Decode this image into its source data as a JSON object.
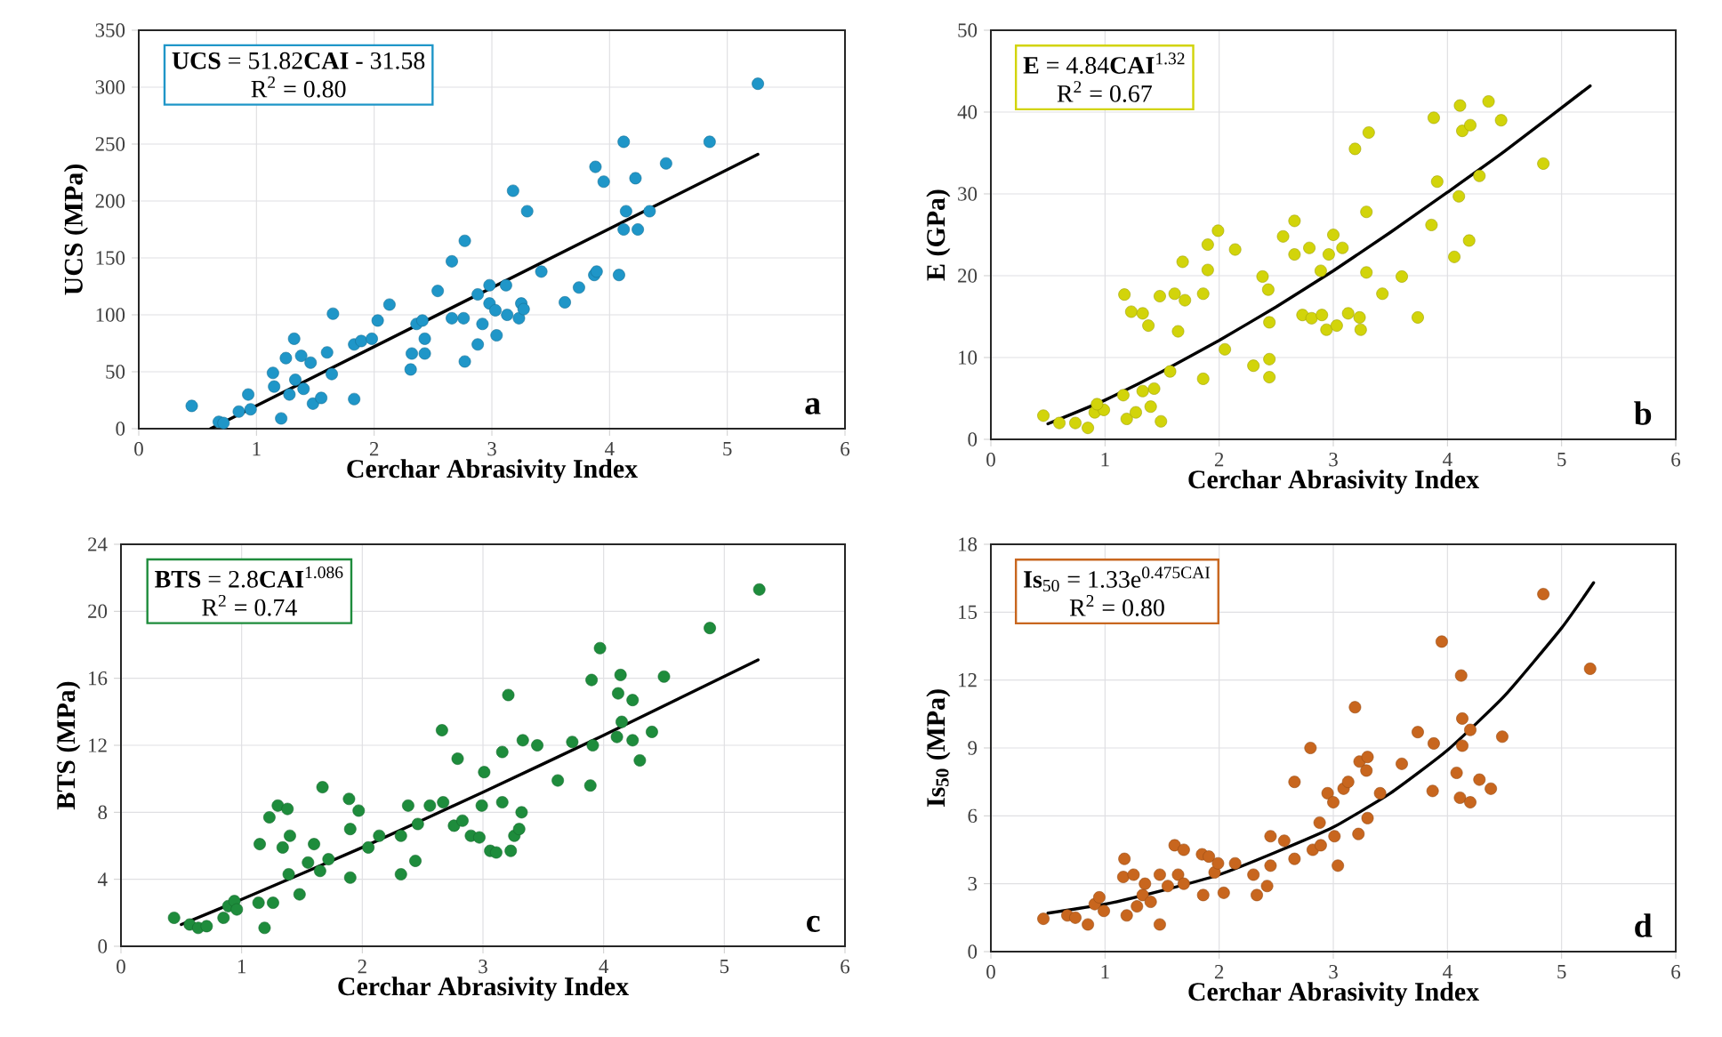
{
  "chart_data": [
    {
      "type": "scatter",
      "xlabel": "Cerchar Abrasivity Index",
      "ylabel": "UCS (MPa)",
      "xlim": [
        0,
        6
      ],
      "xticks": [
        0,
        1,
        2,
        3,
        4,
        5,
        6
      ],
      "ylim": [
        0,
        350
      ],
      "yticks": [
        0,
        50,
        100,
        150,
        200,
        250,
        300,
        350
      ],
      "grid": true,
      "marker": "circle",
      "annotations": [
        "**UCS** = 51.82**CAI** - 31.58",
        "R$^{2}$ = 0.80",
        "**a**"
      ],
      "series": [
        {
          "color": "#1f96c8",
          "x": [
            0.45,
            0.68,
            0.72,
            0.93,
            0.95,
            0.85,
            1.14,
            1.15,
            1.21,
            1.25,
            1.32,
            1.28,
            1.33,
            1.38,
            1.4,
            1.46,
            1.48,
            1.55,
            1.6,
            1.64,
            1.65,
            1.83,
            1.83,
            1.89,
            1.98,
            2.03,
            2.13,
            2.31,
            2.32,
            2.36,
            2.41,
            2.43,
            2.43,
            2.54,
            2.66,
            2.66,
            2.76,
            2.77,
            2.77,
            2.88,
            2.92,
            2.88,
            2.98,
            2.98,
            3.03,
            3.04,
            3.12,
            3.13,
            3.18,
            3.23,
            3.25,
            3.3,
            3.27,
            3.42,
            3.62,
            3.74,
            3.87,
            3.89,
            3.88,
            3.95,
            4.08,
            4.12,
            4.12,
            4.14,
            4.22,
            4.24,
            4.34,
            4.48,
            4.85,
            5.26
          ],
          "values": [
            20,
            6,
            5,
            30,
            17,
            15,
            49,
            37,
            9,
            62,
            79,
            30,
            43,
            64,
            35,
            58,
            22,
            27,
            67,
            48,
            101,
            26,
            74,
            77,
            79,
            95,
            109,
            52,
            66,
            92,
            95,
            79,
            66,
            121,
            147,
            97,
            97,
            165,
            59,
            74,
            92,
            118,
            126,
            110,
            104,
            82,
            126,
            100,
            209,
            97,
            110,
            191,
            105,
            138,
            111,
            124,
            135,
            138,
            230,
            217,
            135,
            252,
            175,
            191,
            220,
            175,
            191,
            233,
            252,
            303
          ]
        },
        {
          "type": "line",
          "color": "#000000",
          "marker": "none",
          "x": [
            0.61,
            5.26
          ],
          "values": [
            0,
            241
          ]
        }
      ]
    },
    {
      "type": "scatter",
      "xlabel": "Cerchar Abrasivity Index",
      "ylabel": "E (GPa)",
      "xlim": [
        0,
        6
      ],
      "xticks": [
        0,
        1,
        2,
        3,
        4,
        5,
        6
      ],
      "ylim": [
        0,
        50
      ],
      "yticks": [
        0,
        10,
        20,
        30,
        40,
        50
      ],
      "grid": true,
      "marker": "circle",
      "annotations": [
        "**E** = 4.84**CAI**$^{1.32}$",
        "R$^{2}$ = 0.67",
        "**b**"
      ],
      "series": [
        {
          "color": "#d2d40a",
          "x": [
            0.46,
            0.6,
            0.74,
            0.85,
            0.91,
            0.99,
            0.93,
            1.16,
            1.17,
            1.23,
            1.19,
            1.27,
            1.33,
            1.38,
            1.4,
            1.43,
            1.33,
            1.48,
            1.49,
            1.57,
            1.61,
            1.64,
            1.68,
            1.7,
            1.86,
            1.86,
            1.9,
            1.9,
            1.99,
            2.05,
            2.14,
            2.3,
            2.38,
            2.43,
            2.44,
            2.44,
            2.44,
            2.56,
            2.66,
            2.66,
            2.73,
            2.79,
            2.81,
            2.9,
            2.89,
            2.94,
            3.0,
            2.96,
            3.03,
            3.08,
            3.13,
            3.19,
            3.23,
            3.24,
            3.29,
            3.29,
            3.31,
            3.43,
            3.6,
            3.74,
            3.86,
            3.88,
            3.91,
            4.06,
            4.1,
            4.11,
            4.13,
            4.19,
            4.2,
            4.28,
            4.36,
            4.47,
            4.84
          ],
          "values": [
            2.9,
            2,
            2,
            1.4,
            3.3,
            3.6,
            4.3,
            5.4,
            17.7,
            15.6,
            2.5,
            3.3,
            15.4,
            13.9,
            4,
            6.2,
            5.9,
            17.5,
            2.2,
            8.3,
            17.8,
            13.2,
            21.7,
            17,
            17.8,
            7.4,
            20.7,
            23.8,
            25.5,
            11,
            23.2,
            9,
            19.9,
            18.3,
            9.8,
            7.6,
            14.3,
            24.8,
            26.7,
            22.6,
            15.2,
            23.4,
            14.8,
            15.2,
            20.6,
            13.4,
            25,
            22.6,
            13.9,
            23.4,
            15.4,
            35.5,
            14.9,
            13.4,
            20.4,
            27.8,
            37.5,
            17.8,
            19.9,
            14.9,
            26.2,
            39.3,
            31.5,
            22.3,
            29.7,
            40.8,
            37.7,
            24.3,
            38.4,
            32.2,
            41.3,
            39,
            33.7
          ]
        },
        {
          "type": "line",
          "color": "#000000",
          "marker": "none",
          "x": [
            0.5,
            1,
            1.5,
            2,
            2.5,
            3,
            3.5,
            4,
            4.5,
            5.25
          ],
          "values": [
            1.9,
            4.8,
            8.3,
            12.1,
            16.2,
            20.6,
            25.3,
            30.2,
            35.2,
            43.2
          ]
        }
      ]
    },
    {
      "type": "scatter",
      "xlabel": "Cerchar Abrasivity Index",
      "ylabel": "BTS (MPa)",
      "xlim": [
        0,
        6
      ],
      "xticks": [
        0,
        1,
        2,
        3,
        4,
        5,
        6
      ],
      "ylim": [
        0,
        24
      ],
      "yticks": [
        0,
        4,
        8,
        12,
        16,
        20,
        24
      ],
      "grid": true,
      "marker": "circle",
      "annotations": [
        "**BTS** = 2.8**CAI**$^{1.086}$",
        "R$^{2}$ = 0.74",
        "**c**"
      ],
      "series": [
        {
          "color": "#1e8c3c",
          "x": [
            0.44,
            0.57,
            0.64,
            0.71,
            0.85,
            0.89,
            0.94,
            0.96,
            1.15,
            1.14,
            1.19,
            1.23,
            1.26,
            1.3,
            1.34,
            1.38,
            1.4,
            1.39,
            1.48,
            1.55,
            1.6,
            1.67,
            1.65,
            1.72,
            1.89,
            1.9,
            1.9,
            1.97,
            2.05,
            2.14,
            2.32,
            2.32,
            2.38,
            2.44,
            2.46,
            2.56,
            2.66,
            2.67,
            2.76,
            2.79,
            2.83,
            2.9,
            2.97,
            2.99,
            3.01,
            3.06,
            3.11,
            3.16,
            3.16,
            3.21,
            3.23,
            3.26,
            3.3,
            3.32,
            3.33,
            3.45,
            3.62,
            3.74,
            3.89,
            3.9,
            3.91,
            3.97,
            4.11,
            4.12,
            4.14,
            4.15,
            4.24,
            4.24,
            4.3,
            4.4,
            4.5,
            4.88,
            5.29
          ],
          "values": [
            1.7,
            1.3,
            1.1,
            1.2,
            1.7,
            2.4,
            2.7,
            2.2,
            6.1,
            2.6,
            1.1,
            7.7,
            2.6,
            8.4,
            5.9,
            8.2,
            6.6,
            4.3,
            3.1,
            5,
            6.1,
            9.5,
            4.5,
            5.2,
            8.8,
            4.1,
            7,
            8.1,
            5.9,
            6.6,
            4.3,
            6.6,
            8.4,
            5.1,
            7.3,
            8.4,
            12.9,
            8.6,
            7.2,
            11.2,
            7.5,
            6.6,
            6.5,
            8.4,
            10.4,
            5.7,
            5.6,
            8.6,
            11.6,
            15,
            5.7,
            6.6,
            7,
            8,
            12.3,
            12,
            9.9,
            12.2,
            9.6,
            15.9,
            12,
            17.8,
            12.5,
            15.1,
            16.2,
            13.4,
            14.7,
            12.3,
            11.1,
            12.8,
            16.1,
            19,
            21.3
          ]
        },
        {
          "type": "line",
          "color": "#000000",
          "marker": "none",
          "x": [
            0.5,
            1,
            2,
            3,
            4,
            5.28
          ],
          "values": [
            1.3,
            2.8,
            5.9,
            9.2,
            12.6,
            17.1
          ]
        }
      ]
    },
    {
      "type": "scatter",
      "xlabel": "Cerchar Abrasivity Index",
      "ylabel": "**Is**$_{50}$ (MPa)",
      "xlim": [
        0,
        6
      ],
      "xticks": [
        0,
        1,
        2,
        3,
        4,
        5,
        6
      ],
      "ylim": [
        0,
        18
      ],
      "yticks": [
        0,
        3,
        6,
        9,
        12,
        15,
        18
      ],
      "grid": true,
      "marker": "circle",
      "annotations": [
        "**Is**$_{50}$ = 1.33e$^{0.475CAI}$",
        "R$^{2}$ = 0.80",
        "**d**"
      ],
      "series": [
        {
          "color": "#c8661e",
          "x": [
            0.46,
            0.67,
            0.74,
            0.85,
            0.91,
            0.95,
            0.99,
            1.17,
            1.16,
            1.19,
            1.25,
            1.28,
            1.33,
            1.35,
            1.4,
            1.48,
            1.48,
            1.55,
            1.61,
            1.64,
            1.69,
            1.69,
            1.85,
            1.86,
            1.91,
            1.96,
            1.99,
            2.04,
            2.14,
            2.3,
            2.33,
            2.42,
            2.45,
            2.45,
            2.57,
            2.66,
            2.66,
            2.8,
            2.82,
            2.88,
            2.89,
            2.95,
            3.0,
            3.01,
            3.04,
            3.09,
            3.13,
            3.19,
            3.22,
            3.23,
            3.29,
            3.3,
            3.3,
            3.41,
            3.6,
            3.74,
            3.88,
            3.87,
            3.95,
            4.08,
            4.11,
            4.12,
            4.13,
            4.13,
            4.2,
            4.2,
            4.28,
            4.38,
            4.48,
            4.84,
            5.25
          ],
          "values": [
            1.45,
            1.6,
            1.5,
            1.2,
            2.1,
            2.4,
            1.8,
            4.1,
            3.3,
            1.6,
            3.4,
            2,
            2.5,
            3,
            2.2,
            3.4,
            1.2,
            2.9,
            4.7,
            3.4,
            4.5,
            3,
            4.3,
            2.5,
            4.2,
            3.5,
            3.9,
            2.6,
            3.9,
            3.4,
            2.5,
            2.9,
            5.1,
            3.8,
            4.9,
            7.5,
            4.1,
            9,
            4.5,
            5.7,
            4.7,
            7,
            6.6,
            5.1,
            3.8,
            7.2,
            7.5,
            10.8,
            5.2,
            8.4,
            8,
            8.6,
            5.9,
            7,
            8.3,
            9.7,
            9.2,
            7.1,
            13.7,
            7.9,
            6.8,
            12.2,
            10.3,
            9.1,
            9.8,
            6.6,
            7.6,
            7.2,
            9.5,
            15.8,
            12.5
          ]
        },
        {
          "type": "line",
          "color": "#000000",
          "marker": "none",
          "x": [
            0.5,
            1,
            1.5,
            2,
            2.5,
            3,
            3.5,
            4,
            4.5,
            5,
            5.28
          ],
          "values": [
            1.7,
            2.1,
            2.7,
            3.4,
            4.4,
            5.5,
            7,
            8.9,
            11.3,
            14.3,
            16.3
          ]
        }
      ]
    }
  ]
}
